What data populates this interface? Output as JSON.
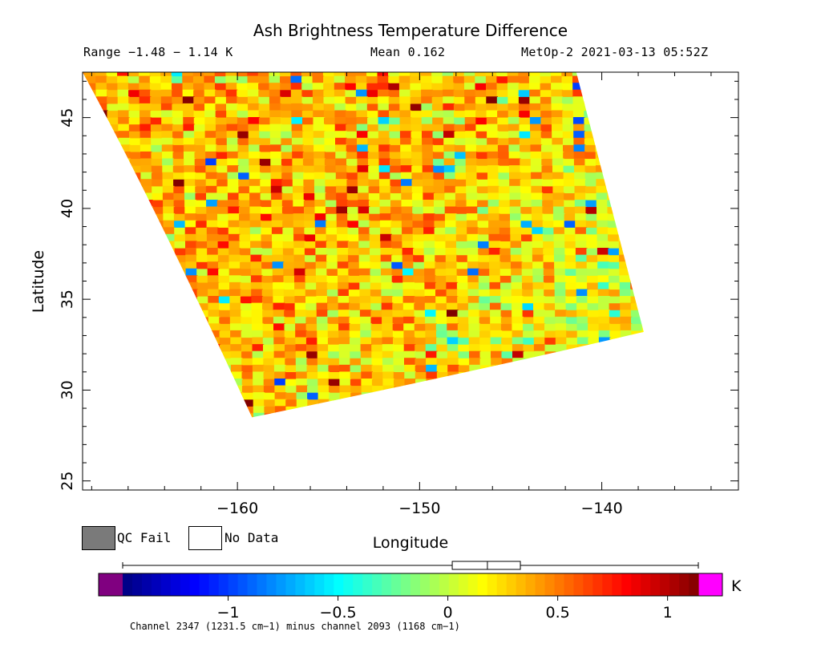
{
  "header": {
    "title": "Ash Brightness Temperature Difference",
    "range": "Range −1.48 − 1.14 K",
    "mean": "Mean 0.162",
    "satellite": "MetOp-2 2021-03-13 05:52Z"
  },
  "legend": {
    "qc_fail": "QC Fail",
    "no_data": "No Data",
    "qc_fail_color": "#7a7a7a",
    "no_data_color": "#ffffff"
  },
  "colorbar": {
    "unit": "K",
    "min": -1.48,
    "max": 1.14,
    "ticks": [
      {
        "value": -1,
        "label": "−1"
      },
      {
        "value": -0.5,
        "label": "−0.5"
      },
      {
        "value": 0,
        "label": "0"
      },
      {
        "value": 0.5,
        "label": "0.5"
      },
      {
        "value": 1,
        "label": "1"
      }
    ],
    "under_color": "#800080",
    "over_color": "#ff00ff",
    "boxplot": {
      "min": -1.48,
      "q1": 0.02,
      "median": 0.18,
      "q3": 0.33,
      "max": 1.14
    },
    "footnote": "Channel 2347 (1231.5 cm−1) minus channel 2093 (1168 cm−1)"
  },
  "chart_data": {
    "type": "heatmap",
    "title": "Ash Brightness Temperature Difference",
    "xlabel": "Longitude",
    "ylabel": "Latitude",
    "xlim": [
      -168.5,
      -132.5
    ],
    "ylim": [
      24.5,
      47.5
    ],
    "xticks": [
      {
        "value": -160,
        "label": "−160"
      },
      {
        "value": -150,
        "label": "−150"
      },
      {
        "value": -140,
        "label": "−140"
      }
    ],
    "yticks": [
      {
        "value": 25,
        "label": "25"
      },
      {
        "value": 30,
        "label": "30"
      },
      {
        "value": 35,
        "label": "35"
      },
      {
        "value": 40,
        "label": "40"
      },
      {
        "value": 45,
        "label": "45"
      }
    ],
    "swath_corners": {
      "top_left": [
        -168.5,
        47.5
      ],
      "top_right": [
        -141.4,
        47.5
      ],
      "bottom_right": [
        -137.7,
        33.2
      ],
      "bottom_left": [
        -159.2,
        28.5
      ]
    },
    "value_range": [
      -1.48,
      1.14
    ],
    "mean": 0.162,
    "grid_cols": 54,
    "grid_rows": 52
  }
}
